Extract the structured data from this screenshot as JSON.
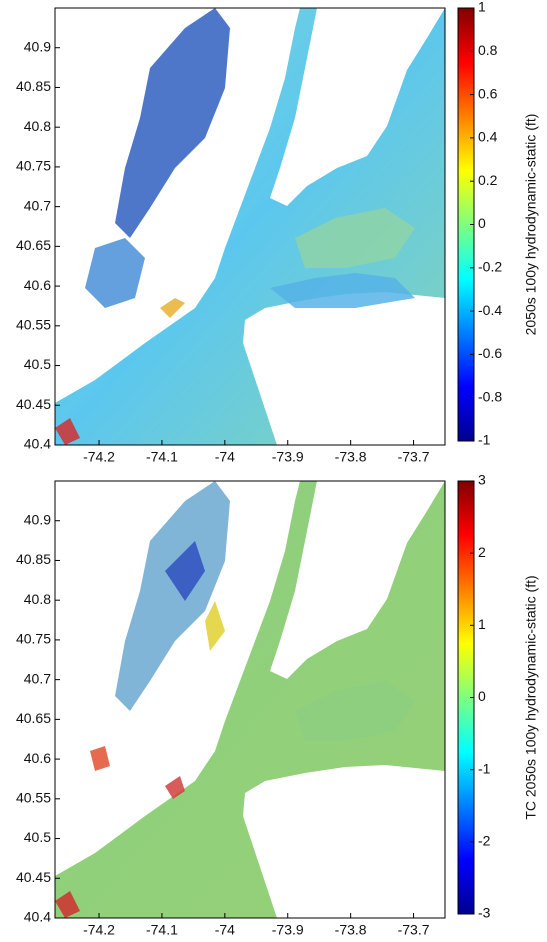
{
  "chart_data": [
    {
      "type": "map",
      "xlim": [
        -74.27,
        -73.65
      ],
      "ylim": [
        40.4,
        40.95
      ],
      "xticks": [
        -74.2,
        -74.1,
        -74,
        -73.9,
        -73.8,
        -73.7
      ],
      "yticks": [
        40.4,
        40.45,
        40.5,
        40.55,
        40.6,
        40.65,
        40.7,
        40.75,
        40.8,
        40.85,
        40.9
      ],
      "colorbar": {
        "label": "2050s 100y hydrodynamic-static (ft)",
        "lim": [
          -1,
          1
        ],
        "ticks": [
          -1,
          -0.8,
          -0.6,
          -0.4,
          -0.2,
          0,
          0.2,
          0.4,
          0.6,
          0.8,
          1
        ]
      }
    },
    {
      "type": "map",
      "xlim": [
        -74.27,
        -73.65
      ],
      "ylim": [
        40.4,
        40.95
      ],
      "xticks": [
        -74.2,
        -74.1,
        -74,
        -73.9,
        -73.8,
        -73.7
      ],
      "yticks": [
        40.4,
        40.45,
        40.5,
        40.55,
        40.6,
        40.65,
        40.7,
        40.75,
        40.8,
        40.85,
        40.9
      ],
      "colorbar": {
        "label": "TC 2050s 100y hydrodynamic-static (ft)",
        "lim": [
          -3,
          3
        ],
        "ticks": [
          -3,
          -2,
          -1,
          0,
          1,
          2,
          3
        ]
      }
    }
  ]
}
